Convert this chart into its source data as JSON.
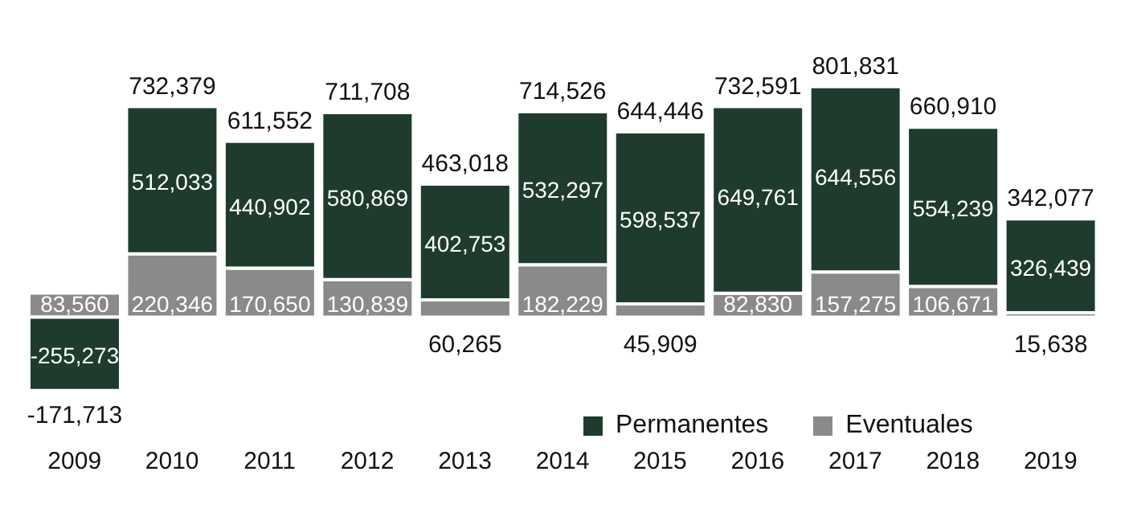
{
  "chart_data": {
    "type": "bar",
    "stacked": true,
    "legend": "bottom right",
    "categories": [
      "2009",
      "2010",
      "2011",
      "2012",
      "2013",
      "2014",
      "2015",
      "2016",
      "2017",
      "2018",
      "2019"
    ],
    "series": [
      {
        "name": "Eventuales",
        "color": "#8a8a8a",
        "values": [
          83560,
          220346,
          170650,
          130839,
          60265,
          182229,
          45909,
          82830,
          157275,
          106671,
          15638
        ],
        "value_labels": [
          "83,560",
          "220,346",
          "170,650",
          "130,839",
          "60,265",
          "182,229",
          "45,909",
          "82,830",
          "157,275",
          "106,671",
          "15,638"
        ]
      },
      {
        "name": "Permanentes",
        "color": "#1f3b2e",
        "values": [
          -255273,
          512033,
          440902,
          580869,
          402753,
          532297,
          598537,
          649761,
          644556,
          554239,
          326439
        ],
        "value_labels": [
          "-255,273",
          "512,033",
          "440,902",
          "580,869",
          "402,753",
          "532,297",
          "598,537",
          "649,761",
          "644,556",
          "554,239",
          "326,439"
        ]
      }
    ],
    "totals": [
      "-171,713",
      "732,379",
      "611,552",
      "711,708",
      "463,018",
      "714,526",
      "644,446",
      "732,591",
      "801,831",
      "660,910",
      "342,077"
    ]
  }
}
